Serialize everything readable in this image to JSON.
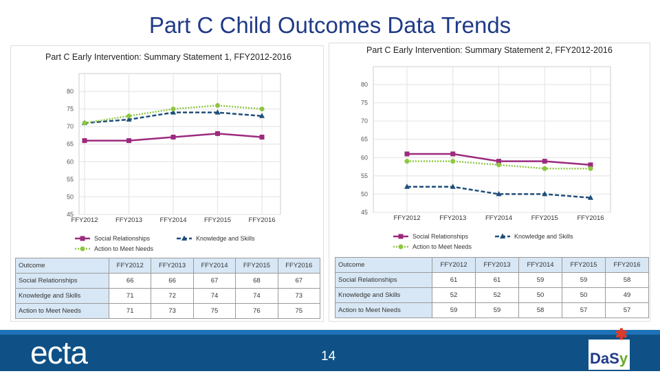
{
  "title": "Part C Child Outcomes Data Trends",
  "page_number": "14",
  "logos": {
    "left": "ecta",
    "right": "DaSy"
  },
  "colors": {
    "social": "#9b2a7e",
    "knowledge": "#1f4e79",
    "action": "#8dc63f",
    "footer": "#0f5186"
  },
  "chart_data": [
    {
      "type": "line",
      "title": "Part C Early Intervention: Summary Statement 1, FFY2012-2016",
      "categories": [
        "FFY2012",
        "FFY2013",
        "FFY2014",
        "FFY2015",
        "FFY2016"
      ],
      "ylim": [
        45,
        80
      ],
      "yticks": [
        45,
        50,
        55,
        60,
        65,
        70,
        75,
        80
      ],
      "grid": true,
      "legend": "bottom",
      "series": [
        {
          "name": "Social Relationships",
          "values": [
            66,
            66,
            67,
            68,
            67
          ],
          "marker": "square",
          "line": "solid"
        },
        {
          "name": "Knowledge and Skills",
          "values": [
            71,
            72,
            74,
            74,
            73
          ],
          "marker": "triangle",
          "line": "dashed"
        },
        {
          "name": "Action to Meet Needs",
          "values": [
            71,
            73,
            75,
            76,
            75
          ],
          "marker": "circle",
          "line": "dotted"
        }
      ],
      "table": {
        "header": [
          "Outcome",
          "FFY2012",
          "FFY2013",
          "FFY2014",
          "FFY2015",
          "FFY2016"
        ]
      }
    },
    {
      "type": "line",
      "title": "Part C Early Intervention: Summary Statement 2, FFY2012-2016",
      "categories": [
        "FFY2012",
        "FFY2013",
        "FFY2014",
        "FFY2015",
        "FFY2016"
      ],
      "ylim": [
        45,
        80
      ],
      "yticks": [
        45,
        50,
        55,
        60,
        65,
        70,
        75,
        80
      ],
      "grid": true,
      "legend": "bottom",
      "series": [
        {
          "name": "Social Relationships",
          "values": [
            61,
            61,
            59,
            59,
            58
          ],
          "marker": "square",
          "line": "solid"
        },
        {
          "name": "Knowledge and Skills",
          "values": [
            52,
            52,
            50,
            50,
            49
          ],
          "marker": "triangle",
          "line": "dashed"
        },
        {
          "name": "Action to Meet Needs",
          "values": [
            59,
            59,
            58,
            57,
            57
          ],
          "marker": "circle",
          "line": "dotted"
        }
      ],
      "table": {
        "header": [
          "Outcome",
          "FFY2012",
          "FFY2013",
          "FFY2014",
          "FFY2015",
          "FFY2016"
        ]
      }
    }
  ]
}
